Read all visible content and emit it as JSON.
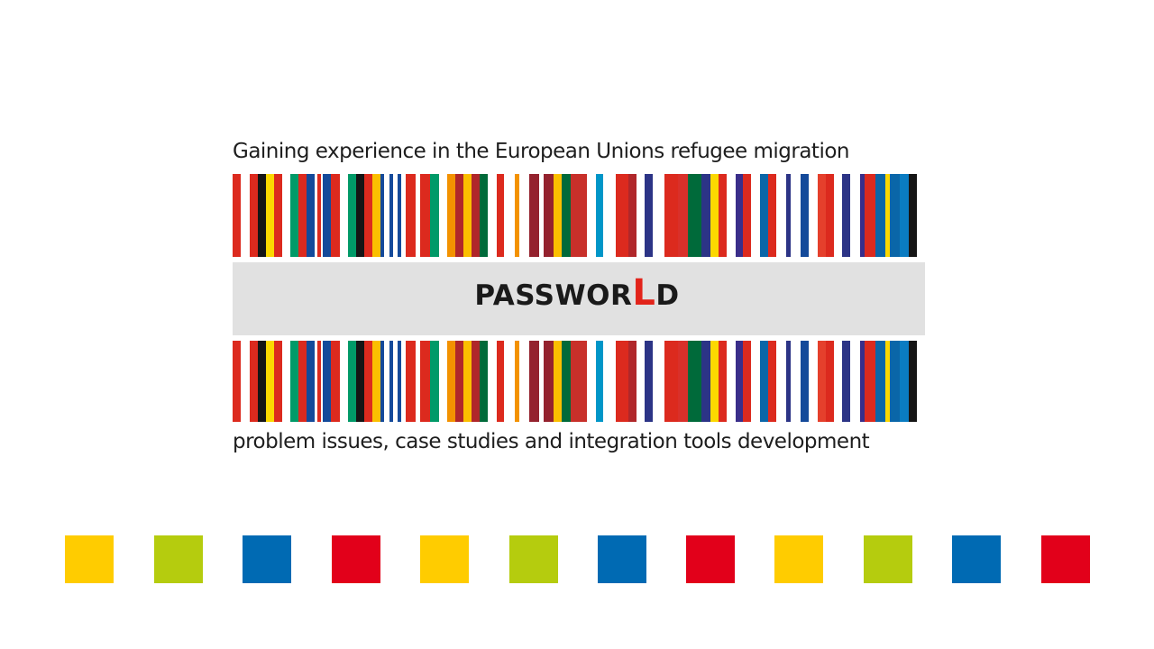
{
  "logo": {
    "top_line": "Gaining experience in the European Unions refugee migration",
    "name_part1": "PASSWOR",
    "name_highlight": "L",
    "name_part2": "D",
    "bottom_line": "problem issues, case studies and integration tools development",
    "highlight_color": "#e2231a",
    "band_color": "#e1e1e1"
  },
  "squares": {
    "colors": [
      "#ffcc00",
      "#b5cc0e",
      "#006ab3",
      "#e2001a",
      "#ffcc00",
      "#b5cc0e",
      "#006ab3",
      "#e2001a",
      "#ffcc00",
      "#b5cc0e",
      "#006ab3",
      "#e2001a"
    ]
  }
}
